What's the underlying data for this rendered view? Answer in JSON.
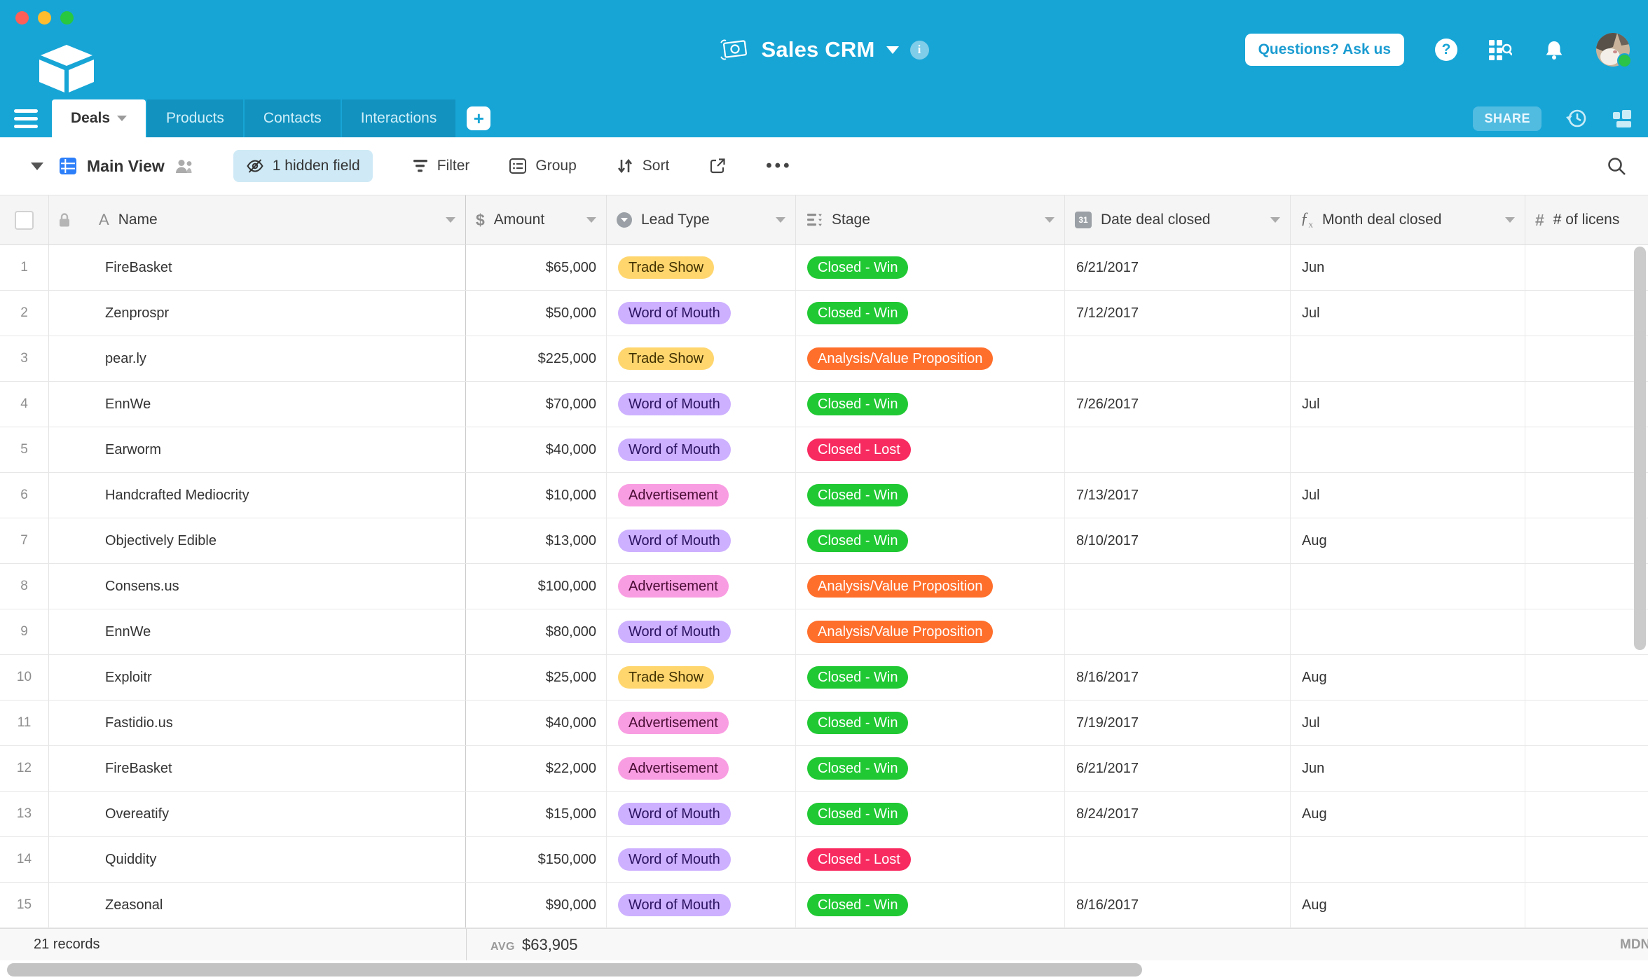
{
  "window": {
    "buttons": [
      "close",
      "minimize",
      "zoom"
    ]
  },
  "topbar": {
    "title": "Sales CRM",
    "questions_button": "Questions? Ask us"
  },
  "tabbar": {
    "tabs": [
      {
        "label": "Deals",
        "active": true
      },
      {
        "label": "Products",
        "active": false
      },
      {
        "label": "Contacts",
        "active": false
      },
      {
        "label": "Interactions",
        "active": false
      }
    ],
    "share_button": "SHARE"
  },
  "viewbar": {
    "view_name": "Main View",
    "hidden_fields_button": "1 hidden field",
    "filter_button": "Filter",
    "group_button": "Group",
    "sort_button": "Sort"
  },
  "table": {
    "columns": [
      {
        "key": "name",
        "label": "Name",
        "icon": "field-text-icon"
      },
      {
        "key": "amount",
        "label": "Amount",
        "icon": "field-currency-icon"
      },
      {
        "key": "lead_type",
        "label": "Lead Type",
        "icon": "field-single-select-icon"
      },
      {
        "key": "stage",
        "label": "Stage",
        "icon": "field-select-list-icon"
      },
      {
        "key": "date_deal_closed",
        "label": "Date deal closed",
        "icon": "field-date-icon"
      },
      {
        "key": "month_deal_closed",
        "label": "Month deal closed",
        "icon": "field-formula-icon"
      },
      {
        "key": "num_licenses",
        "label": "# of licens",
        "icon": "field-number-icon"
      }
    ],
    "badge_styles": {
      "Trade Show": {
        "bg": "#FFD66E",
        "fg": "#403000"
      },
      "Word of Mouth": {
        "bg": "#CDB0FF",
        "fg": "#2B1361"
      },
      "Advertisement": {
        "bg": "#F99DE2",
        "fg": "#4A0D35"
      },
      "Closed - Win": {
        "bg": "#20C933",
        "fg": "#FFFFFF"
      },
      "Closed - Lost": {
        "bg": "#F82B60",
        "fg": "#FFFFFF"
      },
      "Analysis/Value Proposition": {
        "bg": "#FF6F2C",
        "fg": "#FFFFFF"
      }
    },
    "rows": [
      {
        "num": "1",
        "name": "FireBasket",
        "amount": "$65,000",
        "lead_type": "Trade Show",
        "stage": "Closed - Win",
        "date_deal_closed": "6/21/2017",
        "month_deal_closed": "Jun",
        "num_licenses": ""
      },
      {
        "num": "2",
        "name": "Zenprospr",
        "amount": "$50,000",
        "lead_type": "Word of Mouth",
        "stage": "Closed - Win",
        "date_deal_closed": "7/12/2017",
        "month_deal_closed": "Jul",
        "num_licenses": ""
      },
      {
        "num": "3",
        "name": "pear.ly",
        "amount": "$225,000",
        "lead_type": "Trade Show",
        "stage": "Analysis/Value Proposition",
        "date_deal_closed": "",
        "month_deal_closed": "",
        "num_licenses": ""
      },
      {
        "num": "4",
        "name": "EnnWe",
        "amount": "$70,000",
        "lead_type": "Word of Mouth",
        "stage": "Closed - Win",
        "date_deal_closed": "7/26/2017",
        "month_deal_closed": "Jul",
        "num_licenses": ""
      },
      {
        "num": "5",
        "name": "Earworm",
        "amount": "$40,000",
        "lead_type": "Word of Mouth",
        "stage": "Closed - Lost",
        "date_deal_closed": "",
        "month_deal_closed": "",
        "num_licenses": ""
      },
      {
        "num": "6",
        "name": "Handcrafted Mediocrity",
        "amount": "$10,000",
        "lead_type": "Advertisement",
        "stage": "Closed - Win",
        "date_deal_closed": "7/13/2017",
        "month_deal_closed": "Jul",
        "num_licenses": ""
      },
      {
        "num": "7",
        "name": "Objectively Edible",
        "amount": "$13,000",
        "lead_type": "Word of Mouth",
        "stage": "Closed - Win",
        "date_deal_closed": "8/10/2017",
        "month_deal_closed": "Aug",
        "num_licenses": ""
      },
      {
        "num": "8",
        "name": "Consens.us",
        "amount": "$100,000",
        "lead_type": "Advertisement",
        "stage": "Analysis/Value Proposition",
        "date_deal_closed": "",
        "month_deal_closed": "",
        "num_licenses": ""
      },
      {
        "num": "9",
        "name": "EnnWe",
        "amount": "$80,000",
        "lead_type": "Word of Mouth",
        "stage": "Analysis/Value Proposition",
        "date_deal_closed": "",
        "month_deal_closed": "",
        "num_licenses": ""
      },
      {
        "num": "10",
        "name": "Exploitr",
        "amount": "$25,000",
        "lead_type": "Trade Show",
        "stage": "Closed - Win",
        "date_deal_closed": "8/16/2017",
        "month_deal_closed": "Aug",
        "num_licenses": ""
      },
      {
        "num": "11",
        "name": "Fastidio.us",
        "amount": "$40,000",
        "lead_type": "Advertisement",
        "stage": "Closed - Win",
        "date_deal_closed": "7/19/2017",
        "month_deal_closed": "Jul",
        "num_licenses": ""
      },
      {
        "num": "12",
        "name": "FireBasket",
        "amount": "$22,000",
        "lead_type": "Advertisement",
        "stage": "Closed - Win",
        "date_deal_closed": "6/21/2017",
        "month_deal_closed": "Jun",
        "num_licenses": ""
      },
      {
        "num": "13",
        "name": "Overeatify",
        "amount": "$15,000",
        "lead_type": "Word of Mouth",
        "stage": "Closed - Win",
        "date_deal_closed": "8/24/2017",
        "month_deal_closed": "Aug",
        "num_licenses": ""
      },
      {
        "num": "14",
        "name": "Quiddity",
        "amount": "$150,000",
        "lead_type": "Word of Mouth",
        "stage": "Closed - Lost",
        "date_deal_closed": "",
        "month_deal_closed": "",
        "num_licenses": ""
      },
      {
        "num": "15",
        "name": "Zeasonal",
        "amount": "$90,000",
        "lead_type": "Word of Mouth",
        "stage": "Closed - Win",
        "date_deal_closed": "8/16/2017",
        "month_deal_closed": "Aug",
        "num_licenses": ""
      }
    ]
  },
  "footer": {
    "record_count": "21 records",
    "avg_label": "AVG",
    "avg_value": "$63,905",
    "right_label": "MDN"
  },
  "colors": {
    "chrome": "#17A5D6",
    "tab_inactive": "#1292BF",
    "grid_view_icon": "#2D7FF9",
    "hidden_pill_bg": "#CFEAF6",
    "win_green": "#20C933",
    "lost_red": "#F82B60",
    "analysis_orange": "#FF6F2C"
  }
}
